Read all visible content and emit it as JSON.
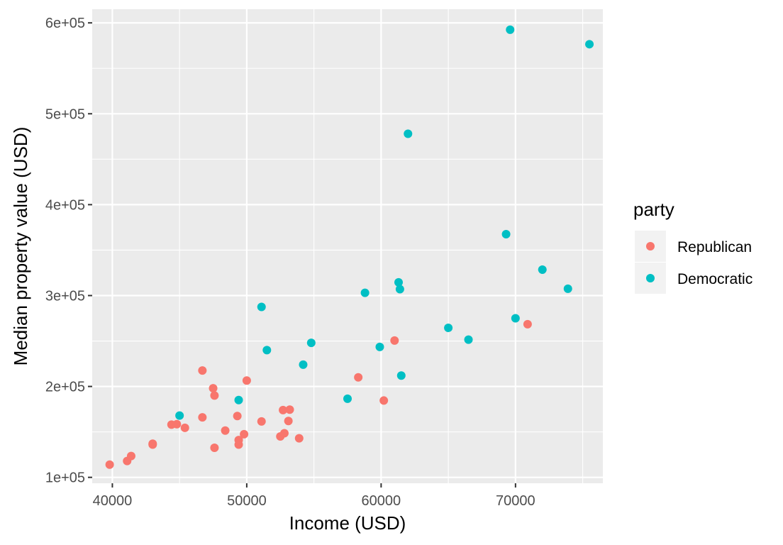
{
  "chart_data": {
    "type": "scatter",
    "xlabel": "Income (USD)",
    "ylabel": "Median property value (USD)",
    "xlim": [
      38500,
      76500
    ],
    "ylim": [
      93500,
      615000
    ],
    "x_ticks": [
      40000,
      50000,
      60000,
      70000
    ],
    "x_tick_labels": [
      "40000",
      "50000",
      "60000",
      "70000"
    ],
    "y_ticks": [
      100000,
      200000,
      300000,
      400000,
      500000,
      600000
    ],
    "y_tick_labels": [
      "1e+05",
      "2e+05",
      "3e+05",
      "4e+05",
      "5e+05",
      "6e+05"
    ],
    "grid": true,
    "legend": {
      "title": "party",
      "position": "right"
    },
    "series": [
      {
        "name": "Republican",
        "color": "#F8766D",
        "points": [
          [
            39800,
            114000
          ],
          [
            41100,
            118000
          ],
          [
            41400,
            123500
          ],
          [
            43000,
            136000
          ],
          [
            43000,
            137000
          ],
          [
            44400,
            158000
          ],
          [
            44800,
            158500
          ],
          [
            45400,
            154500
          ],
          [
            46700,
            217500
          ],
          [
            46700,
            166000
          ],
          [
            47500,
            198000
          ],
          [
            47600,
            132500
          ],
          [
            47600,
            190000
          ],
          [
            48400,
            151500
          ],
          [
            49300,
            167500
          ],
          [
            49400,
            141000
          ],
          [
            49400,
            136000
          ],
          [
            49800,
            147500
          ],
          [
            50000,
            206500
          ],
          [
            51100,
            161500
          ],
          [
            52500,
            145000
          ],
          [
            52700,
            174000
          ],
          [
            52800,
            148500
          ],
          [
            53100,
            162000
          ],
          [
            53200,
            174500
          ],
          [
            53900,
            143000
          ],
          [
            58300,
            210000
          ],
          [
            60200,
            184500
          ],
          [
            61000,
            250500
          ],
          [
            70900,
            268500
          ]
        ]
      },
      {
        "name": "Democratic",
        "color": "#00BFC4",
        "points": [
          [
            45000,
            168000
          ],
          [
            49400,
            185000
          ],
          [
            51100,
            287500
          ],
          [
            51500,
            240000
          ],
          [
            54200,
            224000
          ],
          [
            54800,
            248000
          ],
          [
            57500,
            186500
          ],
          [
            58800,
            303000
          ],
          [
            59900,
            243500
          ],
          [
            61300,
            314500
          ],
          [
            61400,
            307000
          ],
          [
            61500,
            212000
          ],
          [
            62000,
            478000
          ],
          [
            65000,
            264500
          ],
          [
            66500,
            251500
          ],
          [
            69300,
            367500
          ],
          [
            69600,
            592500
          ],
          [
            70000,
            275000
          ],
          [
            72000,
            328500
          ],
          [
            73900,
            307500
          ],
          [
            75500,
            576500
          ]
        ]
      }
    ]
  }
}
